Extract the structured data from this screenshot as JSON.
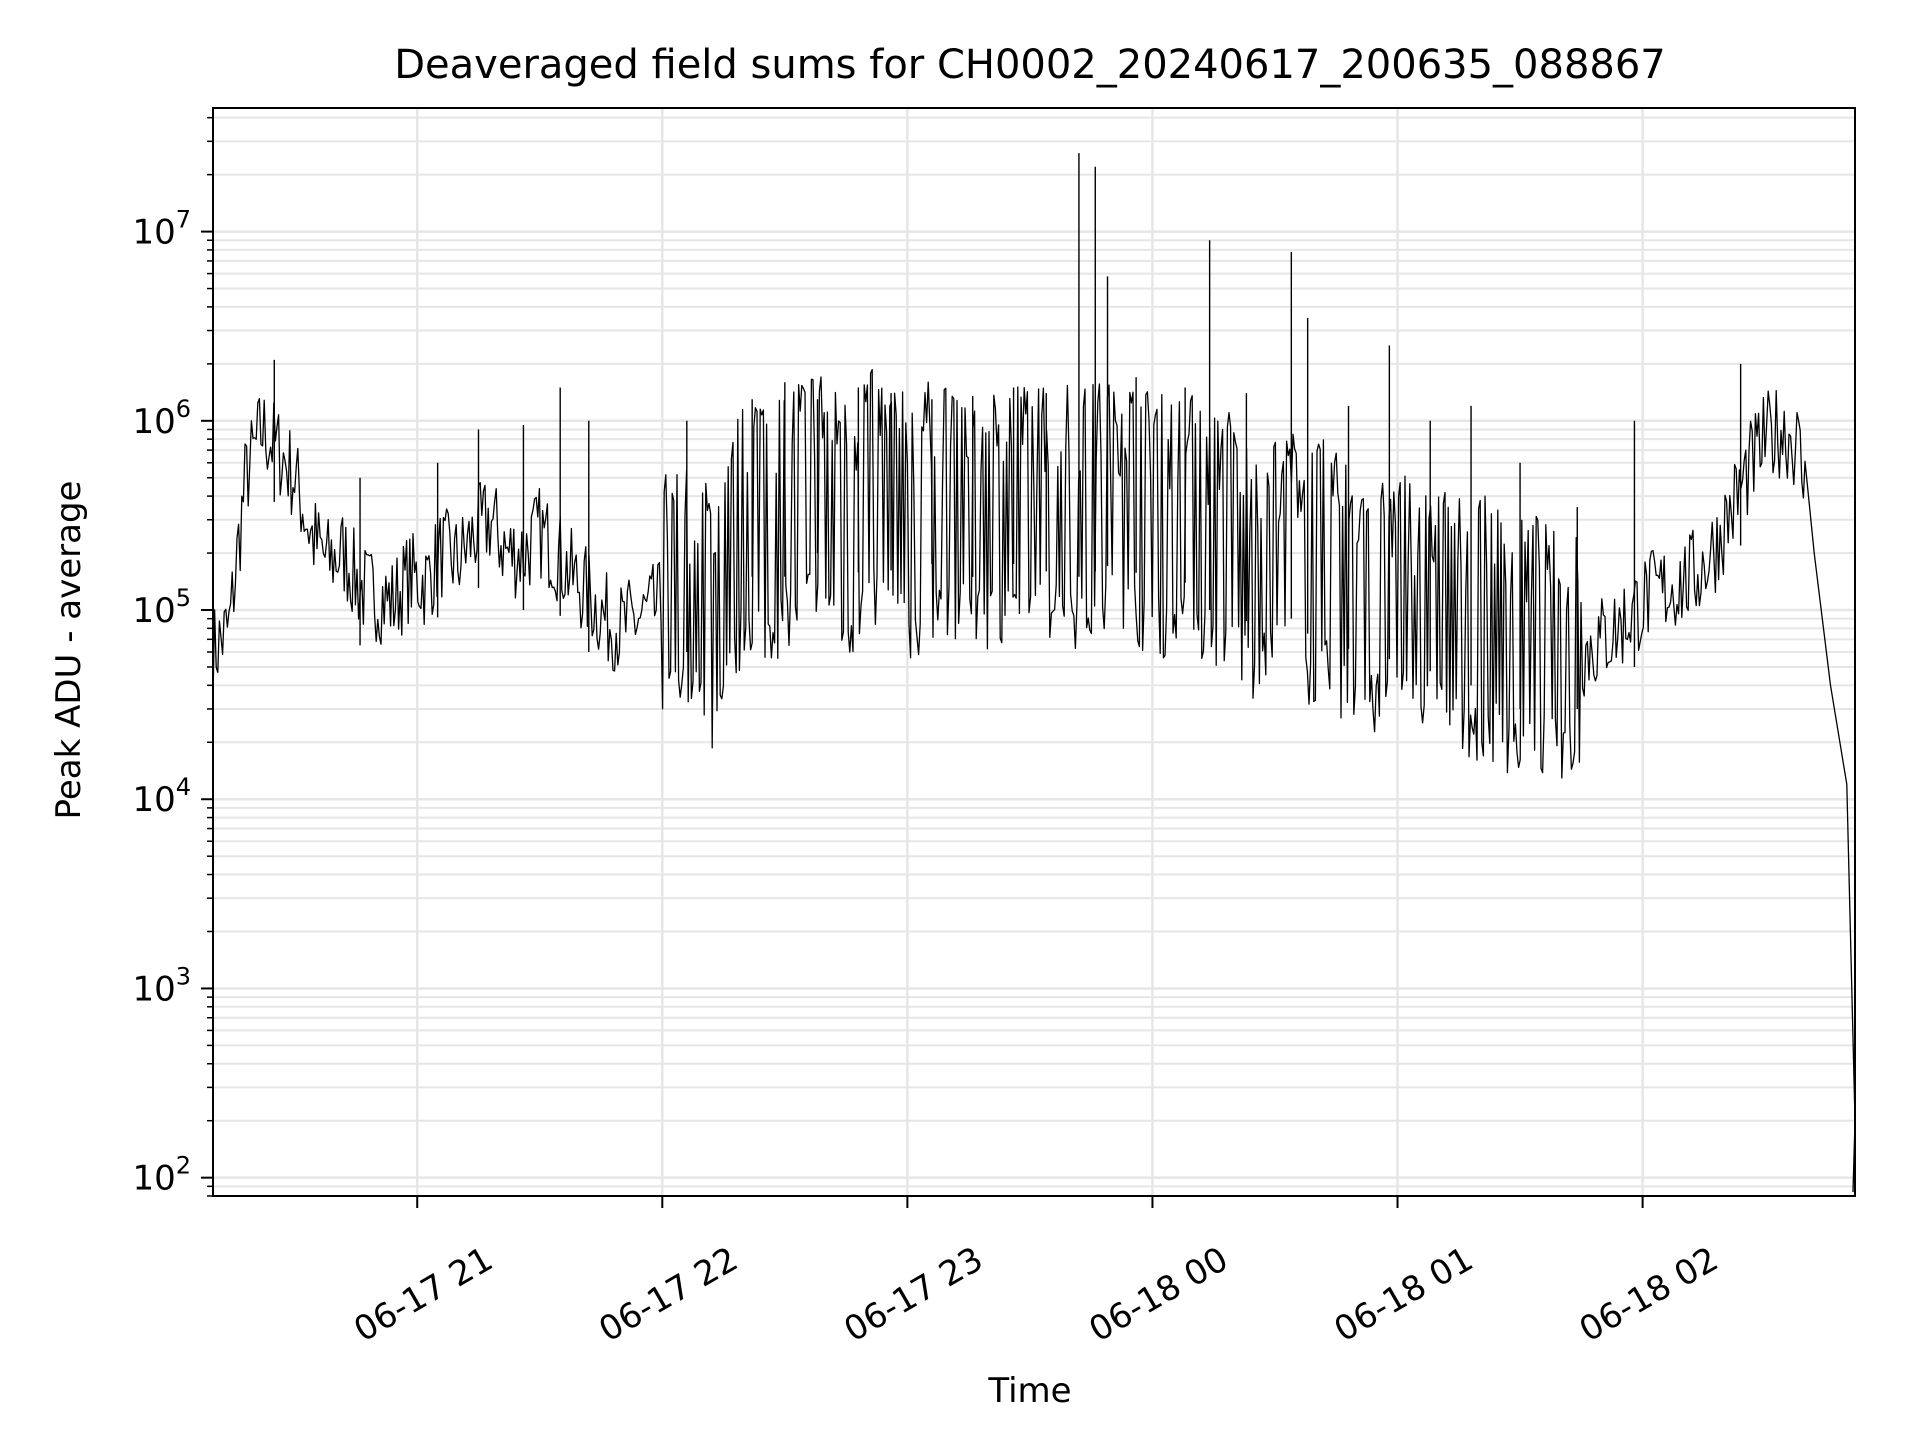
{
  "chart_data": {
    "type": "line",
    "title": "Deaveraged field sums for CH0002_20240617_200635_088867",
    "xlabel": "Time",
    "ylabel": "Peak ADU - average",
    "yscale": "log",
    "ylim": [
      80,
      45000000
    ],
    "xlim": [
      "2024-06-17 20:10",
      "2024-06-18 02:52"
    ],
    "grid": true,
    "xticks": [
      {
        "value": "2024-06-17 21:00",
        "label": "06-17 21"
      },
      {
        "value": "2024-06-17 22:00",
        "label": "06-17 22"
      },
      {
        "value": "2024-06-17 23:00",
        "label": "06-17 23"
      },
      {
        "value": "2024-06-18 00:00",
        "label": "06-18 00"
      },
      {
        "value": "2024-06-18 01:00",
        "label": "06-18 01"
      },
      {
        "value": "2024-06-18 02:00",
        "label": "06-18 02"
      }
    ],
    "yticks": [
      {
        "value": 100,
        "base": "10",
        "exp": "2"
      },
      {
        "value": 1000,
        "base": "10",
        "exp": "3"
      },
      {
        "value": 10000,
        "base": "10",
        "exp": "4"
      },
      {
        "value": 100000,
        "base": "10",
        "exp": "5"
      },
      {
        "value": 1000000,
        "base": "10",
        "exp": "6"
      },
      {
        "value": 10000000,
        "base": "10",
        "exp": "7"
      }
    ],
    "series": [
      {
        "x": [
          "2024-06-17 20:10",
          "2024-06-17 20:14",
          "2024-06-17 20:18",
          "2024-06-17 20:22",
          "2024-06-17 20:26",
          "2024-06-17 20:30",
          "2024-06-17 20:34",
          "2024-06-17 20:38",
          "2024-06-17 20:42",
          "2024-06-17 20:46",
          "2024-06-17 20:50",
          "2024-06-17 20:54",
          "2024-06-17 20:58",
          "2024-06-17 21:02",
          "2024-06-17 21:06",
          "2024-06-17 21:10",
          "2024-06-17 21:14",
          "2024-06-17 21:18",
          "2024-06-17 21:22",
          "2024-06-17 21:26",
          "2024-06-17 21:30",
          "2024-06-17 21:34",
          "2024-06-17 21:38",
          "2024-06-17 21:42",
          "2024-06-17 21:46",
          "2024-06-17 21:50",
          "2024-06-17 21:54",
          "2024-06-17 21:58",
          "2024-06-17 22:02",
          "2024-06-17 22:06",
          "2024-06-17 22:10",
          "2024-06-17 22:14",
          "2024-06-17 22:18",
          "2024-06-17 22:22",
          "2024-06-17 22:26",
          "2024-06-17 22:30",
          "2024-06-17 22:34",
          "2024-06-17 22:38",
          "2024-06-17 22:42",
          "2024-06-17 22:46",
          "2024-06-17 22:50",
          "2024-06-17 22:54",
          "2024-06-17 22:58",
          "2024-06-17 23:02",
          "2024-06-17 23:06",
          "2024-06-17 23:10",
          "2024-06-17 23:14",
          "2024-06-17 23:18",
          "2024-06-17 23:22",
          "2024-06-17 23:26",
          "2024-06-17 23:30",
          "2024-06-17 23:34",
          "2024-06-17 23:38",
          "2024-06-17 23:42",
          "2024-06-17 23:46",
          "2024-06-17 23:50",
          "2024-06-17 23:54",
          "2024-06-17 23:58",
          "2024-06-18 00:02",
          "2024-06-18 00:06",
          "2024-06-18 00:10",
          "2024-06-18 00:14",
          "2024-06-18 00:18",
          "2024-06-18 00:22",
          "2024-06-18 00:26",
          "2024-06-18 00:30",
          "2024-06-18 00:34",
          "2024-06-18 00:38",
          "2024-06-18 00:42",
          "2024-06-18 00:46",
          "2024-06-18 00:50",
          "2024-06-18 00:54",
          "2024-06-18 00:58",
          "2024-06-18 01:02",
          "2024-06-18 01:06",
          "2024-06-18 01:10",
          "2024-06-18 01:14",
          "2024-06-18 01:18",
          "2024-06-18 01:22",
          "2024-06-18 01:26",
          "2024-06-18 01:30",
          "2024-06-18 01:34",
          "2024-06-18 01:38",
          "2024-06-18 01:42",
          "2024-06-18 01:46",
          "2024-06-18 01:50",
          "2024-06-18 01:54",
          "2024-06-18 01:58",
          "2024-06-18 02:02",
          "2024-06-18 02:06",
          "2024-06-18 02:10",
          "2024-06-18 02:14",
          "2024-06-18 02:18",
          "2024-06-18 02:22",
          "2024-06-18 02:26",
          "2024-06-18 02:30",
          "2024-06-18 02:34",
          "2024-06-18 02:38",
          "2024-06-18 02:42",
          "2024-06-18 02:46",
          "2024-06-18 02:50",
          "2024-06-18 02:52"
        ],
        "y": [
          60000,
          80000,
          500000,
          900000,
          700000,
          500000,
          250000,
          180000,
          200000,
          130000,
          120000,
          110000,
          150000,
          140000,
          200000,
          180000,
          250000,
          300000,
          200000,
          200000,
          260000,
          200000,
          150000,
          120000,
          90000,
          80000,
          90000,
          100000,
          110000,
          120000,
          100000,
          80000,
          200000,
          300000,
          250000,
          300000,
          350000,
          400000,
          300000,
          250000,
          400000,
          350000,
          300000,
          250000,
          350000,
          300000,
          320000,
          280000,
          300000,
          350000,
          300000,
          320000,
          350000,
          300000,
          320000,
          350000,
          330000,
          300000,
          280000,
          260000,
          300000,
          200000,
          250000,
          180000,
          160000,
          200000,
          180000,
          150000,
          160000,
          130000,
          120000,
          100000,
          110000,
          110000,
          90000,
          100000,
          80000,
          80000,
          80000,
          70000,
          60000,
          65000,
          60000,
          60000,
          60000,
          70000,
          80000,
          100000,
          120000,
          130000,
          140000,
          160000,
          220000,
          350000,
          550000,
          800000,
          900000,
          750000,
          200000,
          40000,
          12000,
          200
        ]
      }
    ],
    "spikes": [
      {
        "x": "2024-06-17 20:25",
        "y": 2100000
      },
      {
        "x": "2024-06-17 20:46",
        "y": 500000
      },
      {
        "x": "2024-06-17 21:05",
        "y": 600000
      },
      {
        "x": "2024-06-17 21:15",
        "y": 900000
      },
      {
        "x": "2024-06-17 21:26",
        "y": 950000
      },
      {
        "x": "2024-06-17 21:35",
        "y": 1500000
      },
      {
        "x": "2024-06-17 21:42",
        "y": 1000000
      },
      {
        "x": "2024-06-17 22:06",
        "y": 1000000
      },
      {
        "x": "2024-06-17 22:22",
        "y": 1300000
      },
      {
        "x": "2024-06-17 22:30",
        "y": 1600000
      },
      {
        "x": "2024-06-17 22:38",
        "y": 1300000
      },
      {
        "x": "2024-06-17 22:48",
        "y": 1500000
      },
      {
        "x": "2024-06-17 22:56",
        "y": 1400000
      },
      {
        "x": "2024-06-17 23:06",
        "y": 1300000
      },
      {
        "x": "2024-06-17 23:16",
        "y": 1350000
      },
      {
        "x": "2024-06-17 23:26",
        "y": 1500000
      },
      {
        "x": "2024-06-17 23:34",
        "y": 1400000
      },
      {
        "x": "2024-06-17 23:42",
        "y": 26000000
      },
      {
        "x": "2024-06-17 23:46",
        "y": 22000000
      },
      {
        "x": "2024-06-17 23:49",
        "y": 5800000
      },
      {
        "x": "2024-06-17 23:56",
        "y": 1700000
      },
      {
        "x": "2024-06-18 00:08",
        "y": 1500000
      },
      {
        "x": "2024-06-18 00:14",
        "y": 9000000
      },
      {
        "x": "2024-06-18 00:23",
        "y": 1400000
      },
      {
        "x": "2024-06-18 00:34",
        "y": 7800000
      },
      {
        "x": "2024-06-18 00:38",
        "y": 3500000
      },
      {
        "x": "2024-06-18 00:48",
        "y": 1200000
      },
      {
        "x": "2024-06-18 00:58",
        "y": 2500000
      },
      {
        "x": "2024-06-18 01:08",
        "y": 1000000
      },
      {
        "x": "2024-06-18 01:18",
        "y": 1200000
      },
      {
        "x": "2024-06-18 01:30",
        "y": 600000
      },
      {
        "x": "2024-06-18 01:44",
        "y": 350000
      },
      {
        "x": "2024-06-18 01:58",
        "y": 1000000
      },
      {
        "x": "2024-06-18 02:24",
        "y": 2000000
      }
    ]
  }
}
